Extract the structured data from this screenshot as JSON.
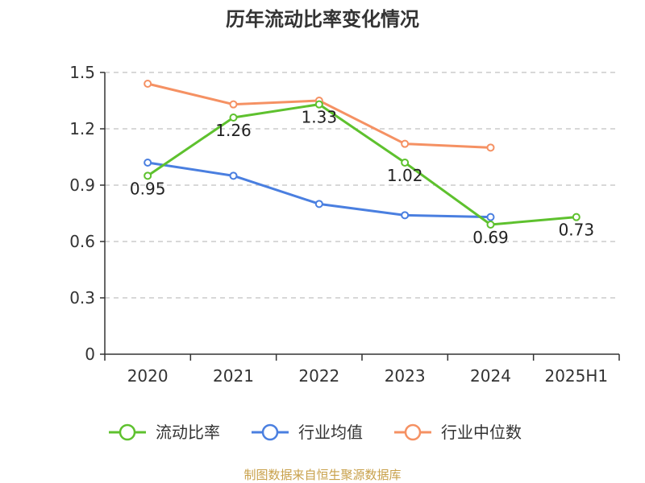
{
  "chart_data": {
    "type": "line",
    "title": "历年流动比率变化情况",
    "categories": [
      "2020",
      "2021",
      "2022",
      "2023",
      "2024",
      "2025H1"
    ],
    "ylim": [
      0,
      1.5
    ],
    "yticks": [
      "0",
      "0.3",
      "0.6",
      "0.9",
      "1.2",
      "1.5"
    ],
    "grid": true,
    "legend_position": "bottom",
    "series": [
      {
        "name": "流动比率",
        "color": "#5ec12e",
        "values": [
          0.95,
          1.26,
          1.33,
          1.02,
          0.69,
          0.73
        ],
        "labels": [
          "0.95",
          "1.26",
          "1.33",
          "1.02",
          "0.69",
          "0.73"
        ]
      },
      {
        "name": "行业均值",
        "color": "#4a7fe0",
        "values": [
          1.02,
          0.95,
          0.8,
          0.74,
          0.73,
          null
        ]
      },
      {
        "name": "行业中位数",
        "color": "#f59163",
        "values": [
          1.44,
          1.33,
          1.35,
          1.12,
          1.1,
          null
        ]
      }
    ],
    "source": "制图数据来自恒生聚源数据库"
  }
}
